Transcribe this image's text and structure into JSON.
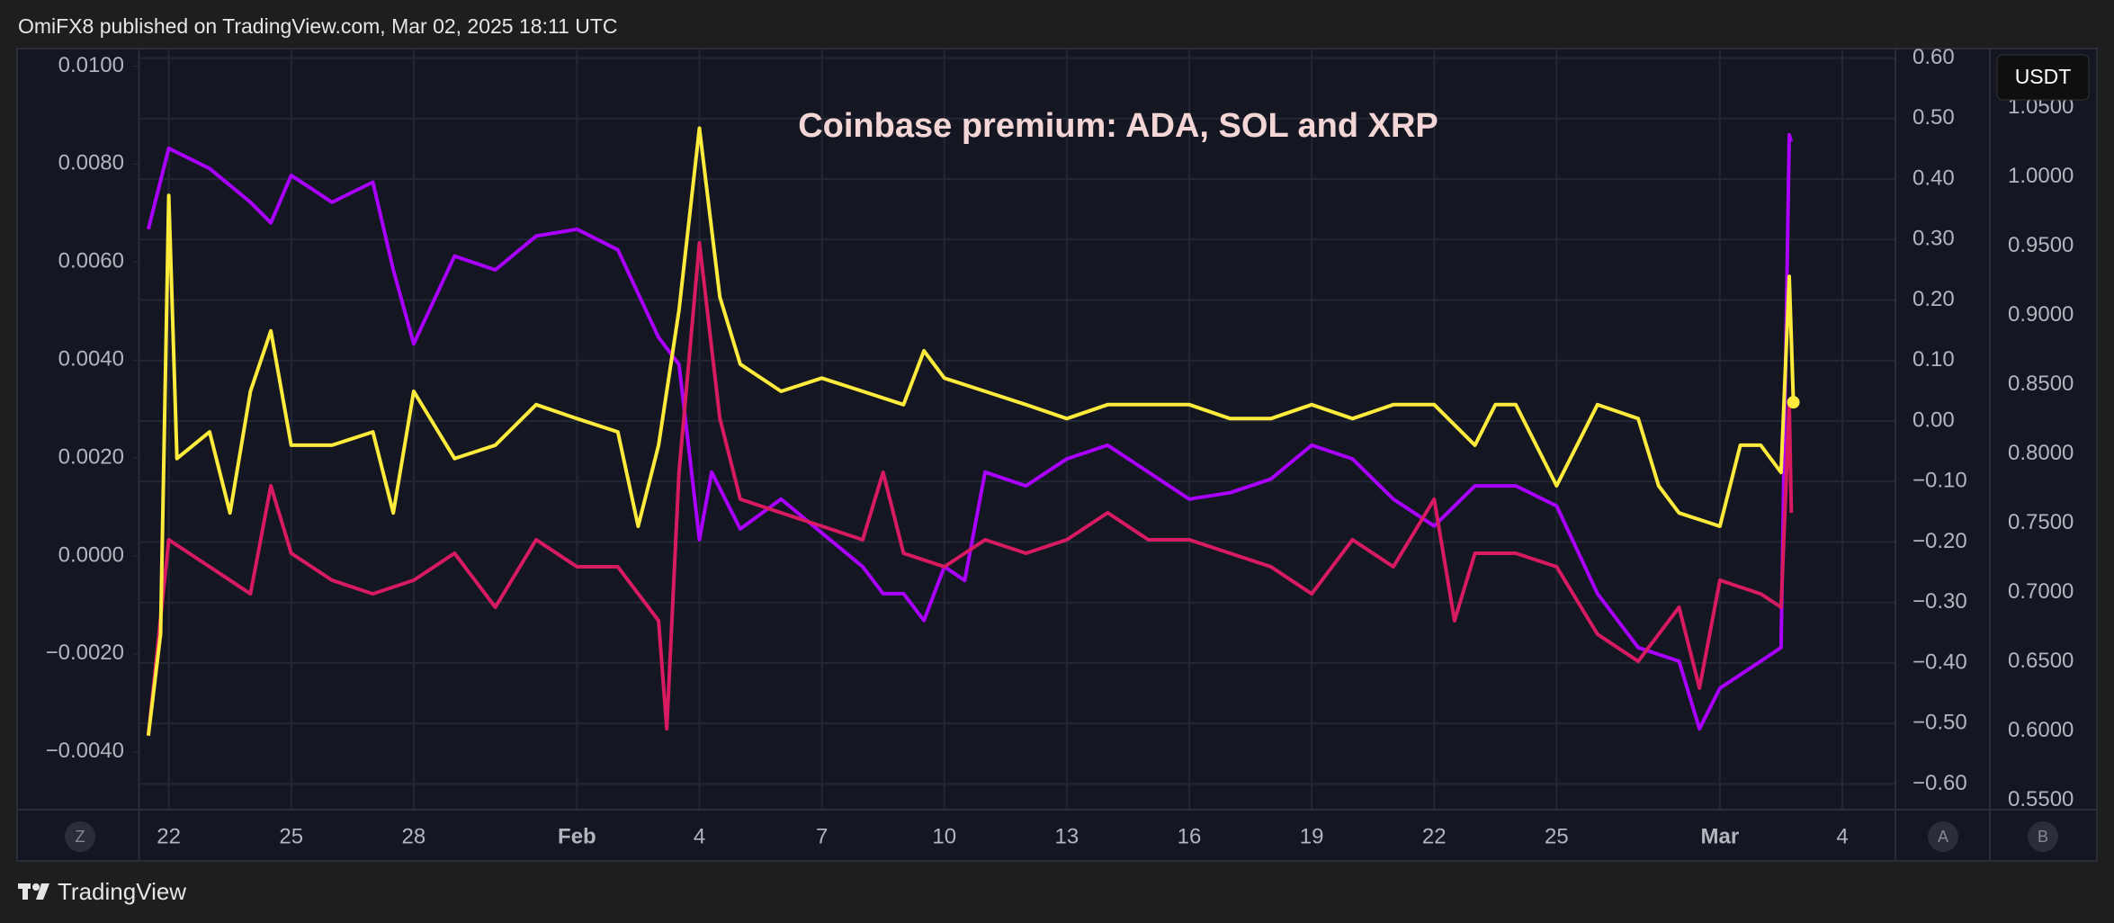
{
  "header": {
    "text": "OmiFX8 published on TradingView.com, Mar 02, 2025 18:11 UTC"
  },
  "footer": {
    "brand": "TradingView"
  },
  "ui": {
    "currency": "USDT",
    "buttons": [
      "Z",
      "A",
      "B"
    ]
  },
  "chart_data": {
    "type": "line",
    "title": "Coinbase premium: ADA, SOL and XRP",
    "xlim": [
      21.27,
      64.3
    ],
    "xticks": [
      22,
      25,
      28,
      {
        "value": 32,
        "label": "Feb"
      },
      {
        "value": 35,
        "label": "4"
      },
      {
        "value": 38,
        "label": "7"
      },
      {
        "value": 41,
        "label": "10"
      },
      {
        "value": 44,
        "label": "13"
      },
      {
        "value": 47,
        "label": "16"
      },
      {
        "value": 50,
        "label": "19"
      },
      {
        "value": 53,
        "label": "22"
      },
      {
        "value": 56,
        "label": "25"
      },
      {
        "value": 60,
        "label": "Mar"
      },
      {
        "value": 63,
        "label": "4"
      }
    ],
    "ylim": [
      -0.00518,
      0.01033
    ],
    "yticks": [
      {
        "value": 0.01,
        "label": "0.0100"
      },
      {
        "value": 0.008,
        "label": "0.0080"
      },
      {
        "value": 0.006,
        "label": "0.0060"
      },
      {
        "value": 0.004,
        "label": "0.0040"
      },
      {
        "value": 0.002,
        "label": "0.0020"
      },
      {
        "value": 0,
        "label": "0.0000"
      },
      {
        "value": -0.002,
        "label": "−0.0020"
      },
      {
        "value": -0.004,
        "label": "−0.0040"
      }
    ],
    "y2lim": [
      -0.6424,
      0.6134
    ],
    "y2ticks": [
      {
        "value": 0.6,
        "label": "0.60"
      },
      {
        "value": 0.5,
        "label": "0.50"
      },
      {
        "value": 0.4,
        "label": "0.40"
      },
      {
        "value": 0.3,
        "label": "0.30"
      },
      {
        "value": 0.2,
        "label": "0.20"
      },
      {
        "value": 0.1,
        "label": "0.10"
      },
      {
        "value": 0,
        "label": "0.00"
      },
      {
        "value": -0.1,
        "label": "−0.10"
      },
      {
        "value": -0.2,
        "label": "−0.20"
      },
      {
        "value": -0.3,
        "label": "−0.30"
      },
      {
        "value": -0.4,
        "label": "−0.40"
      },
      {
        "value": -0.5,
        "label": "−0.50"
      },
      {
        "value": -0.6,
        "label": "−0.60"
      }
    ],
    "y3lim": [
      0.5432,
      1.0916
    ],
    "y3ticks": [
      {
        "value": 1.05,
        "label": "1.0500"
      },
      {
        "value": 1,
        "label": "1.0000"
      },
      {
        "value": 0.95,
        "label": "0.9500"
      },
      {
        "value": 0.9,
        "label": "0.9000"
      },
      {
        "value": 0.85,
        "label": "0.8500"
      },
      {
        "value": 0.8,
        "label": "0.8000"
      },
      {
        "value": 0.75,
        "label": "0.7500"
      },
      {
        "value": 0.7,
        "label": "0.7000"
      },
      {
        "value": 0.65,
        "label": "0.6500"
      },
      {
        "value": 0.6,
        "label": "0.6000"
      },
      {
        "value": 0.55,
        "label": "0.5500"
      }
    ],
    "grid": true,
    "series": [
      {
        "color": "#aa00ff",
        "axis": "y",
        "x": [
          21.5,
          22,
          23,
          24,
          24.5,
          25,
          26,
          27,
          27.5,
          28,
          29,
          30,
          31,
          32,
          33,
          34,
          34.5,
          35,
          35.3,
          36,
          37,
          38,
          39,
          39.5,
          40,
          40.5,
          41,
          41.5,
          42,
          43,
          44,
          45,
          46,
          47,
          48,
          49,
          50,
          51,
          52,
          53,
          54,
          55,
          56,
          57,
          58,
          59,
          59.5,
          60,
          61,
          61.5,
          61.7,
          61.75
        ],
        "values": [
          0.00667,
          0.00832,
          0.00791,
          0.00722,
          0.0068,
          0.00777,
          0.00722,
          0.00763,
          0.00584,
          0.00433,
          0.00612,
          0.00584,
          0.00653,
          0.00667,
          0.00625,
          0.00446,
          0.00391,
          0.00033,
          0.00171,
          0.00055,
          0.00116,
          0.00047,
          -0.00022,
          -0.00077,
          -0.00077,
          -0.00132,
          -0.00022,
          -0.0005,
          0.00171,
          0.00143,
          0.00198,
          0.00226,
          0.00171,
          0.00116,
          0.00129,
          0.00157,
          0.00226,
          0.00198,
          0.00116,
          0.00061,
          0.00143,
          0.00143,
          0.00102,
          -0.00077,
          -0.00187,
          -0.00215,
          -0.00353,
          -0.0027,
          -0.00215,
          -0.00187,
          0.0086,
          0.00846
        ]
      },
      {
        "color": "#d81b60",
        "axis": "y3",
        "x": [
          21.5,
          22,
          23,
          24,
          24.5,
          25,
          26,
          27,
          28,
          29,
          30,
          31,
          32,
          33,
          34,
          34.2,
          34.5,
          35,
          35.5,
          36,
          37,
          38,
          39,
          39.5,
          40,
          41,
          42,
          43,
          44,
          45,
          46,
          47,
          48,
          49,
          50,
          51,
          52,
          53,
          53.5,
          54,
          55,
          56,
          57,
          58,
          59,
          59.5,
          60,
          61,
          61.5,
          61.7,
          61.75
        ],
        "values": [
          0.5968,
          0.738,
          0.7185,
          0.699,
          0.777,
          0.7283,
          0.7088,
          0.699,
          0.7088,
          0.7283,
          0.6893,
          0.738,
          0.7185,
          0.7185,
          0.6796,
          0.6016,
          0.7867,
          0.9523,
          0.8257,
          0.7673,
          0.7575,
          0.7478,
          0.738,
          0.7867,
          0.7283,
          0.7185,
          0.738,
          0.7283,
          0.738,
          0.7575,
          0.738,
          0.738,
          0.7283,
          0.7185,
          0.699,
          0.738,
          0.7185,
          0.7673,
          0.6796,
          0.7283,
          0.7283,
          0.7185,
          0.6698,
          0.6503,
          0.6893,
          0.6309,
          0.7088,
          0.699,
          0.6893,
          0.8354,
          0.7575
        ]
      },
      {
        "color": "#ffeb3b",
        "axis": "y2",
        "x": [
          21.5,
          21.8,
          22,
          22.2,
          23,
          23.5,
          24,
          24.5,
          25,
          26,
          27,
          27.5,
          28,
          29,
          30,
          31,
          32,
          33,
          33.5,
          34,
          34.5,
          35,
          35.5,
          36,
          37,
          38,
          39,
          40,
          40.5,
          41,
          42,
          43,
          44,
          45,
          46,
          47,
          48,
          49,
          50,
          51,
          52,
          53,
          54,
          54.5,
          55,
          56,
          57,
          58,
          58.5,
          59,
          60,
          60.5,
          61,
          61.5,
          61.7,
          61.8
        ],
        "values": [
          -0.52,
          -0.352,
          0.373,
          -0.062,
          -0.018,
          -0.152,
          0.049,
          0.149,
          -0.04,
          -0.04,
          -0.018,
          -0.152,
          0.049,
          -0.062,
          -0.04,
          0.027,
          0.004,
          -0.018,
          -0.174,
          -0.04,
          0.183,
          0.484,
          0.205,
          0.094,
          0.049,
          0.071,
          0.049,
          0.027,
          0.116,
          0.071,
          0.049,
          0.027,
          0.004,
          0.027,
          0.027,
          0.027,
          0.004,
          0.004,
          0.027,
          0.004,
          0.027,
          0.027,
          -0.04,
          0.027,
          0.027,
          -0.107,
          0.027,
          0.004,
          -0.107,
          -0.152,
          -0.174,
          -0.04,
          -0.04,
          -0.085,
          0.239,
          0.031
        ]
      }
    ]
  }
}
